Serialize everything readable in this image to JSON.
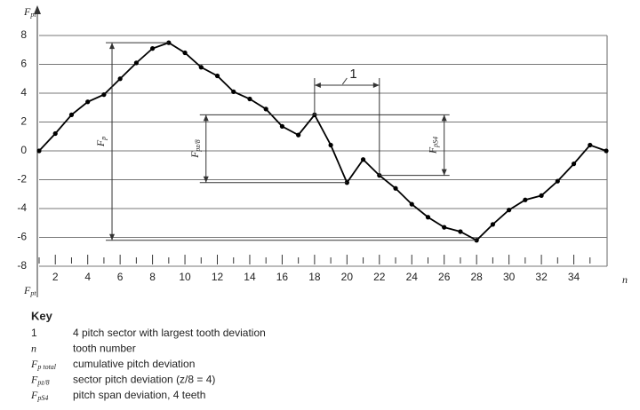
{
  "chart_data": {
    "type": "line",
    "y_label": {
      "symbol": "F",
      "sub": "pt"
    },
    "x_label": "n",
    "x": [
      1,
      2,
      3,
      4,
      5,
      6,
      7,
      8,
      9,
      10,
      11,
      12,
      13,
      14,
      15,
      16,
      17,
      18,
      19,
      20,
      21,
      22,
      23,
      24,
      25,
      26,
      27,
      28,
      29,
      30,
      31,
      32,
      33,
      34,
      35,
      36
    ],
    "values": [
      0,
      1.2,
      2.5,
      3.4,
      3.9,
      5.0,
      6.1,
      7.1,
      7.5,
      6.8,
      5.8,
      5.2,
      4.1,
      3.6,
      2.9,
      1.7,
      1.1,
      2.5,
      0.4,
      -2.2,
      -0.6,
      -1.7,
      -2.6,
      -3.7,
      -4.6,
      -5.3,
      -5.6,
      -6.2,
      -5.1,
      -4.1,
      -3.4,
      -3.1,
      -2.1,
      -0.9,
      0.4,
      0
    ],
    "color": "#000000",
    "xlim": [
      1,
      36
    ],
    "ylim": [
      -8,
      8
    ],
    "xticks": [
      2,
      4,
      6,
      8,
      10,
      12,
      14,
      16,
      18,
      20,
      22,
      24,
      26,
      28,
      30,
      32,
      34
    ],
    "xminor": [
      1,
      3,
      5,
      7,
      9,
      11,
      13,
      15,
      17,
      19,
      21,
      23,
      25,
      27,
      29,
      31,
      33,
      35
    ],
    "yticks": [
      8,
      6,
      4,
      2,
      0,
      -2,
      -4,
      -6,
      -8
    ],
    "grid": true,
    "annotations": [
      {
        "kind": "span",
        "label": "1",
        "from": 17,
        "to": 21
      },
      {
        "kind": "vertical",
        "symbol": "F",
        "sub": "p",
        "x": 5.5,
        "from": 8,
        "to": 27
      },
      {
        "kind": "vertical",
        "symbol": "F",
        "sub": "pz/8",
        "x": 11.3,
        "from": 17,
        "to": 19
      },
      {
        "kind": "vertical",
        "symbol": "F",
        "sub": "pS4",
        "x": 26,
        "from": 17,
        "to": 21
      }
    ]
  },
  "key": {
    "title": "Key",
    "rows": [
      {
        "symbol": "1",
        "sub": null,
        "text": "4 pitch sector with largest tooth deviation"
      },
      {
        "symbol": "n",
        "sub": null,
        "text": "tooth number"
      },
      {
        "symbol": "F",
        "sub": "p total",
        "text": "cumulative pitch deviation"
      },
      {
        "symbol": "F",
        "sub": "pz/8",
        "text": "sector pitch deviation (z/8 = 4)"
      },
      {
        "symbol": "F",
        "sub": "pS4",
        "text": "pitch span deviation, 4 teeth"
      }
    ]
  }
}
